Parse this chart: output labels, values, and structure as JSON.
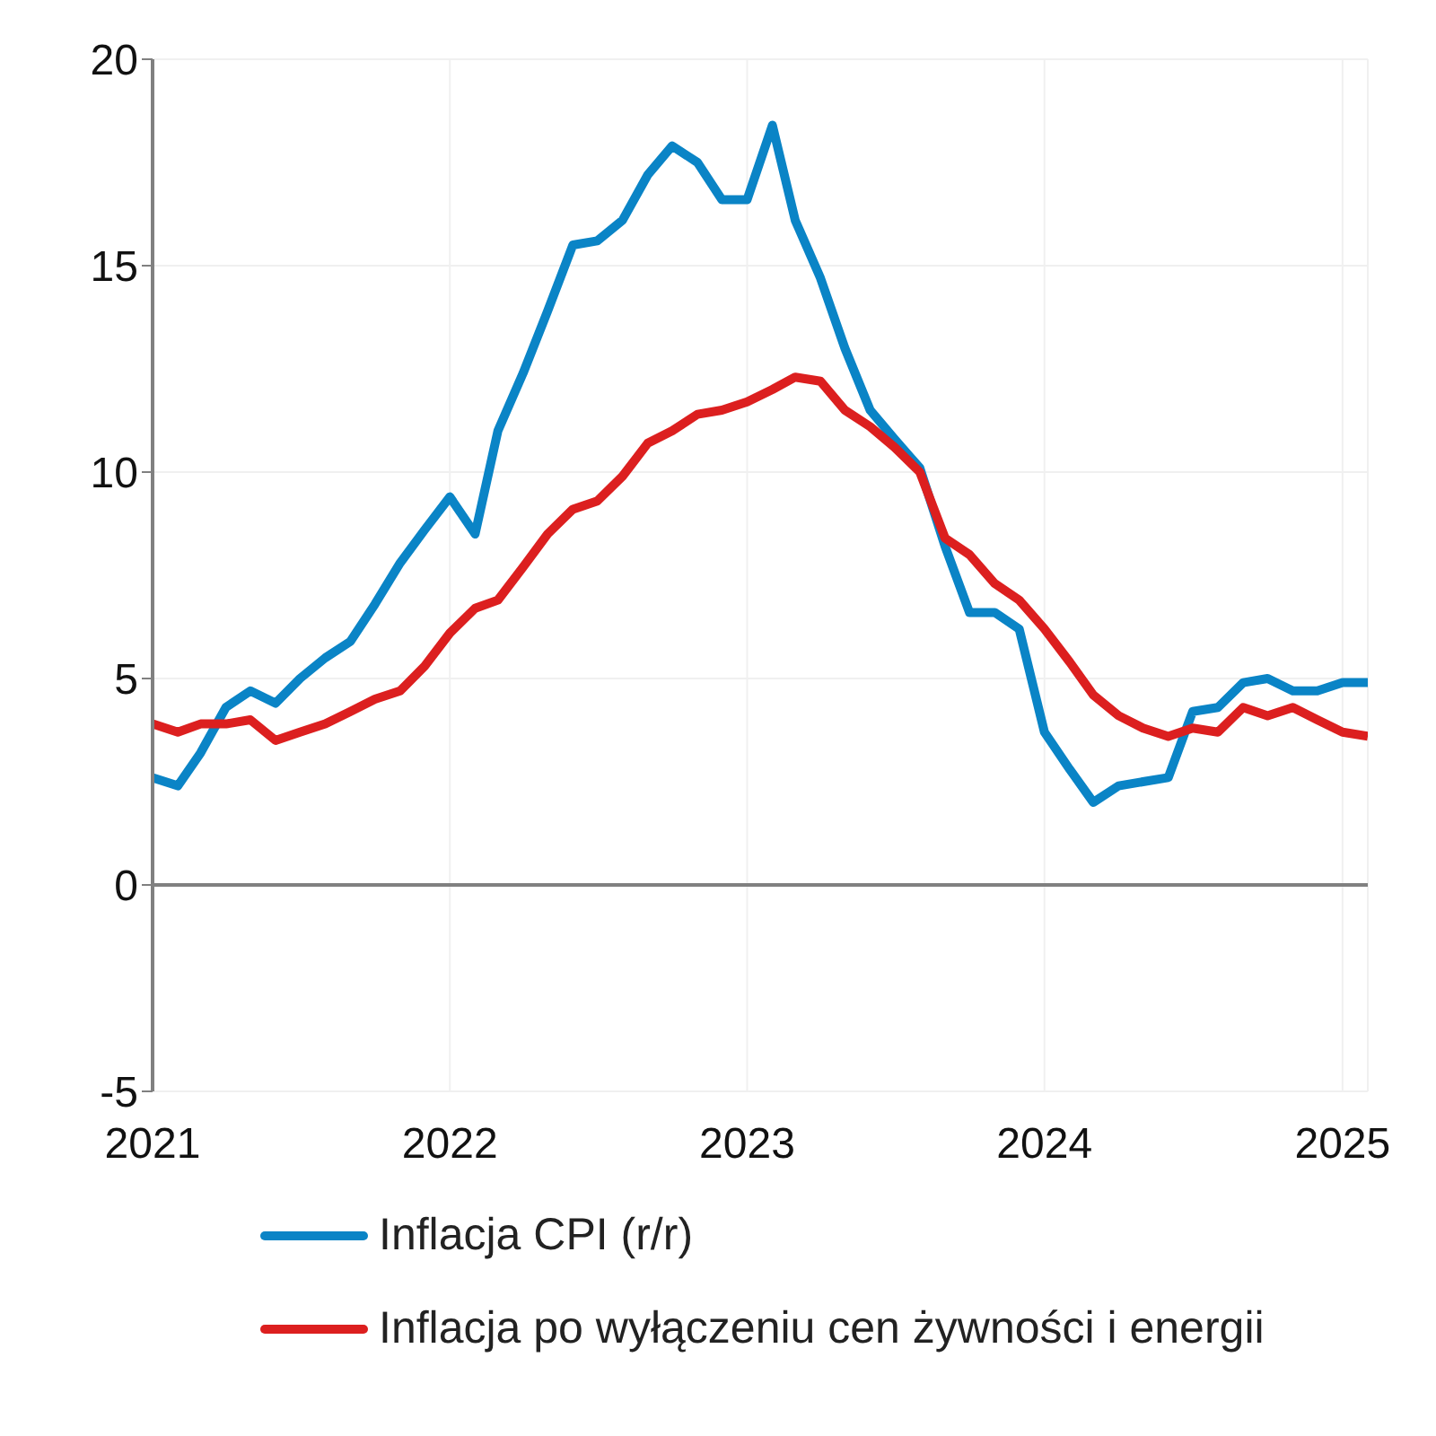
{
  "chart_data": {
    "type": "line",
    "x": [
      "2021-01",
      "2021-02",
      "2021-03",
      "2021-04",
      "2021-05",
      "2021-06",
      "2021-07",
      "2021-08",
      "2021-09",
      "2021-10",
      "2021-11",
      "2021-12",
      "2022-01",
      "2022-02",
      "2022-03",
      "2022-04",
      "2022-05",
      "2022-06",
      "2022-07",
      "2022-08",
      "2022-09",
      "2022-10",
      "2022-11",
      "2022-12",
      "2023-01",
      "2023-02",
      "2023-03",
      "2023-04",
      "2023-05",
      "2023-06",
      "2023-07",
      "2023-08",
      "2023-09",
      "2023-10",
      "2023-11",
      "2023-12",
      "2024-01",
      "2024-02",
      "2024-03",
      "2024-04",
      "2024-05",
      "2024-06",
      "2024-07",
      "2024-08",
      "2024-09",
      "2024-10",
      "2024-11",
      "2024-12",
      "2025-01",
      "2025-02"
    ],
    "series": [
      {
        "name": "Inflacja CPI (r/r)",
        "color": "#0a84c6",
        "values": [
          2.6,
          2.4,
          3.2,
          4.3,
          4.7,
          4.4,
          5.0,
          5.5,
          5.9,
          6.8,
          7.8,
          8.6,
          9.4,
          8.5,
          11.0,
          12.4,
          13.9,
          15.5,
          15.6,
          16.1,
          17.2,
          17.9,
          17.5,
          16.6,
          16.6,
          18.4,
          16.1,
          14.7,
          13.0,
          11.5,
          10.8,
          10.1,
          8.2,
          6.6,
          6.6,
          6.2,
          3.7,
          2.8,
          2.0,
          2.4,
          2.5,
          2.6,
          4.2,
          4.3,
          4.9,
          5.0,
          4.7,
          4.7,
          4.9,
          4.9
        ]
      },
      {
        "name": "Inflacja po wyłączeniu cen żywności i energii",
        "color": "#dc1f1f",
        "values": [
          3.9,
          3.7,
          3.9,
          3.9,
          4.0,
          3.5,
          3.7,
          3.9,
          4.2,
          4.5,
          4.7,
          5.3,
          6.1,
          6.7,
          6.9,
          7.7,
          8.5,
          9.1,
          9.3,
          9.9,
          10.7,
          11.0,
          11.4,
          11.5,
          11.7,
          12.0,
          12.3,
          12.2,
          11.5,
          11.1,
          10.6,
          10.0,
          8.4,
          8.0,
          7.3,
          6.9,
          6.2,
          5.4,
          4.6,
          4.1,
          3.8,
          3.6,
          3.8,
          3.7,
          4.3,
          4.1,
          4.3,
          4.0,
          3.7,
          3.6
        ]
      }
    ],
    "xlim": [
      "2021-01",
      "2025-02"
    ],
    "xticks": [
      {
        "value": "2021-01",
        "label": "2021"
      },
      {
        "value": "2022-01",
        "label": "2022"
      },
      {
        "value": "2023-01",
        "label": "2023"
      },
      {
        "value": "2024-01",
        "label": "2024"
      },
      {
        "value": "2025-01",
        "label": "2025"
      }
    ],
    "ylim": [
      -5,
      20
    ],
    "yticks": [
      -5,
      0,
      5,
      10,
      15,
      20
    ],
    "ref_lines": [
      {
        "axis": "y",
        "value": 0,
        "color": "#808080"
      }
    ],
    "grid": true,
    "legend": "bottom",
    "marker": "none",
    "line_style": "solid"
  }
}
